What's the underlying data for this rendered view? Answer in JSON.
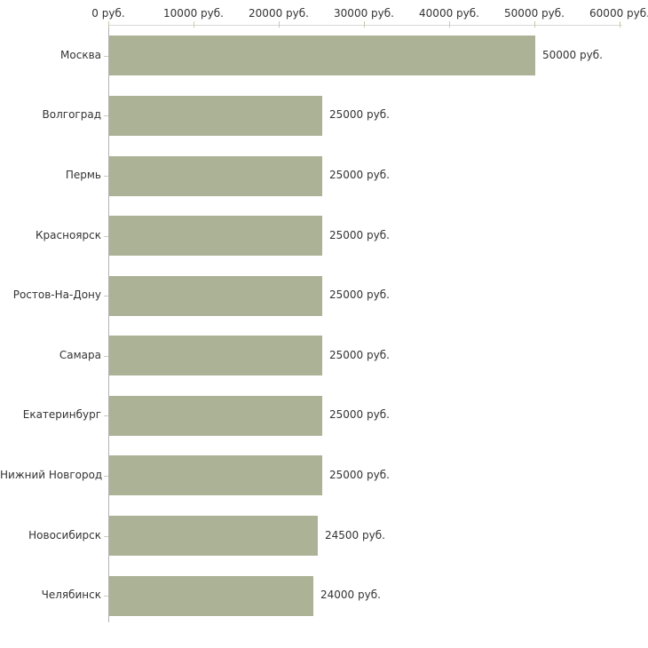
{
  "chart_data": {
    "type": "bar",
    "orientation": "horizontal",
    "categories": [
      "Москва",
      "Волгоград",
      "Пермь",
      "Красноярск",
      "Ростов-На-Дону",
      "Самара",
      "Екатеринбург",
      "Нижний Новгород",
      "Новосибирск",
      "Челябинск"
    ],
    "values": [
      50000,
      25000,
      25000,
      25000,
      25000,
      25000,
      25000,
      25000,
      24500,
      24000
    ],
    "value_labels": [
      "50000 руб.",
      "25000 руб.",
      "25000 руб.",
      "25000 руб.",
      "25000 руб.",
      "25000 руб.",
      "25000 руб.",
      "25000 руб.",
      "24500 руб.",
      "24000 руб."
    ],
    "x_ticks": [
      0,
      10000,
      20000,
      30000,
      40000,
      50000,
      60000
    ],
    "x_tick_labels": [
      "0 руб.",
      "10000 руб.",
      "20000 руб.",
      "30000 руб.",
      "40000 руб.",
      "50000 руб.",
      "60000 руб."
    ],
    "xlim": [
      0,
      60000
    ],
    "unit": "руб.",
    "title": "",
    "xlabel": "",
    "ylabel": "",
    "grid": false,
    "legend": false,
    "colors": {
      "bar_fill": "#abb296",
      "top_axis_line": "#d8d8d8",
      "left_axis_line": "#b3b3b3",
      "value_axis_tick": "#c9c9a9",
      "category_tick": "#ccccb3",
      "text": "#333333",
      "background": "#ffffff"
    }
  }
}
